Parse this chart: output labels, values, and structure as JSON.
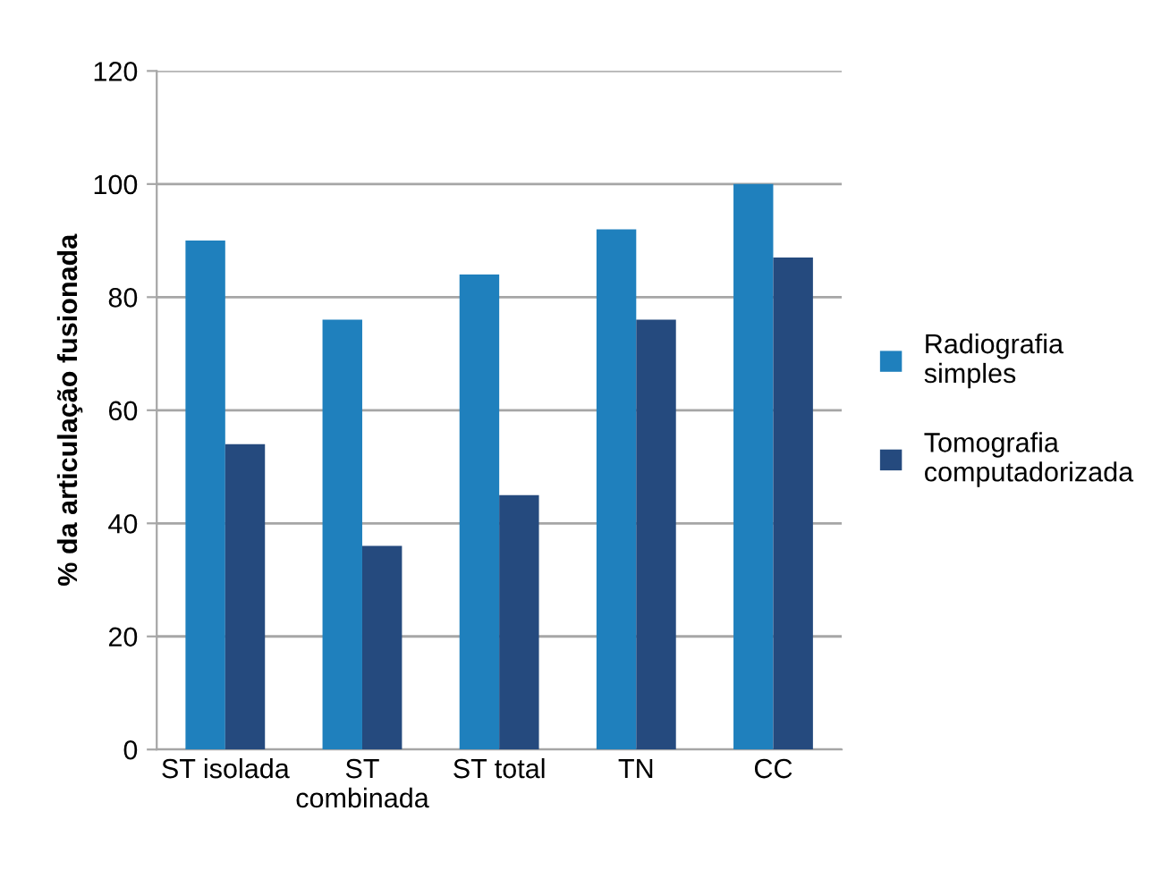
{
  "chart_data": {
    "type": "bar",
    "ylabel": "% da articulação fusionada",
    "categories": [
      "ST isolada",
      "ST\ncombinada",
      "ST total",
      "TN",
      "CC"
    ],
    "series": [
      {
        "name": "Radiografia\nsimples",
        "color": "#1f80bd",
        "values": [
          90,
          76,
          84,
          92,
          100
        ]
      },
      {
        "name": "Tomografia\ncomputadorizada",
        "color": "#254a7e",
        "values": [
          54,
          36,
          45,
          76,
          87
        ]
      }
    ],
    "ylim": [
      0,
      120
    ],
    "yticks": [
      0,
      20,
      40,
      60,
      80,
      100,
      120
    ],
    "grid": "y",
    "legend": "right"
  }
}
